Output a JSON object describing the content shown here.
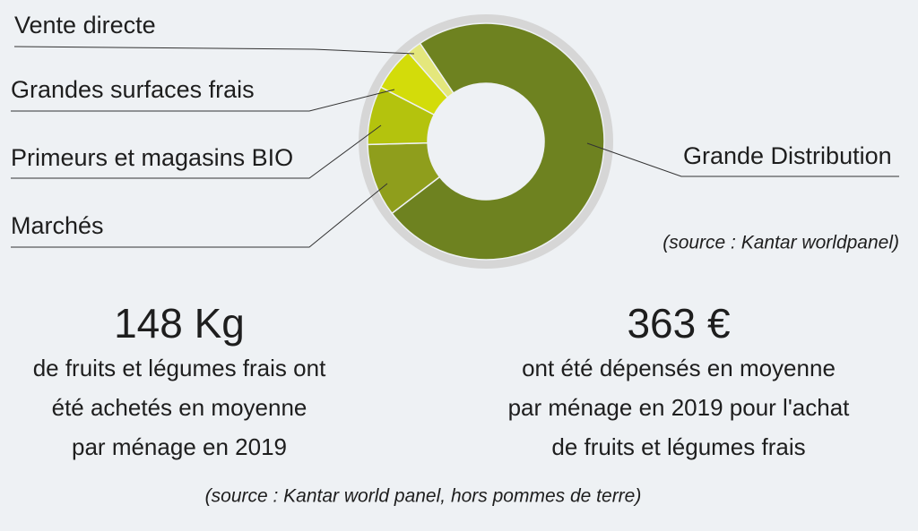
{
  "chart_data": {
    "type": "donut",
    "categories": [
      "Grande Distribution",
      "Marchés",
      "Primeurs et magasins BIO",
      "Grandes surfaces frais",
      "Vente directe"
    ],
    "values": [
      74,
      10,
      8,
      6,
      2
    ],
    "colors": [
      "#6e8220",
      "#8f9e1c",
      "#b4c30d",
      "#d3dc0a",
      "#e4e77c"
    ],
    "source": "(source : Kantar worldpanel)"
  },
  "stats": [
    {
      "value": "148 Kg",
      "text": [
        "de fruits et légumes frais ont",
        "été achetés en moyenne",
        "par ménage en 2019"
      ]
    },
    {
      "value": "363 €",
      "text": [
        "ont été dépensés en moyenne",
        "par ménage en 2019 pour l'achat",
        "de fruits et légumes frais"
      ]
    }
  ],
  "footer": "(source : Kantar world panel, hors pommes de terre)"
}
